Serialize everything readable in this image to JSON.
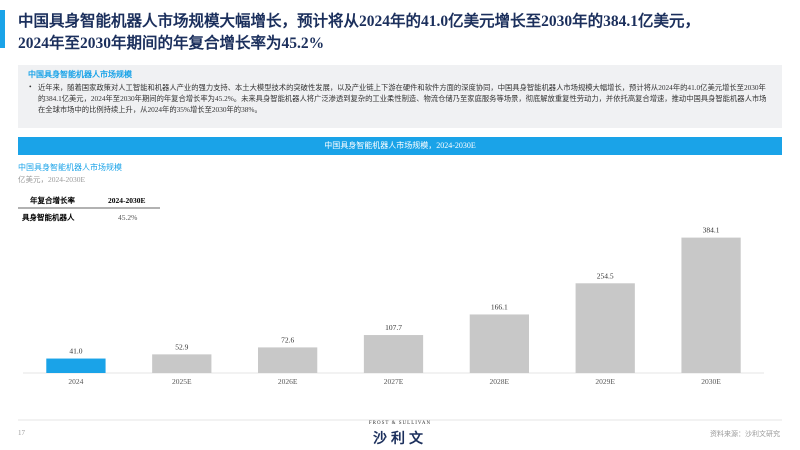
{
  "header": {
    "title_line1": "中国具身智能机器人市场规模大幅增长，预计将从2024年的41.0亿美元增长至2030年的384.1亿美元，",
    "title_line2": "2024年至2030年期间的年复合增长率为45.2%"
  },
  "summary": {
    "heading": "中国具身智能机器人市场规模",
    "bullet": "近年来，随着国家政策对人工智能和机器人产业的强力支持、本土大模型技术的突破性发展，以及产业链上下游在硬件和软件方面的深度协同，中国具身智能机器人市场规模大幅增长，预计将从2024年的41.0亿美元增长至2030年的384.1亿美元，2024年至2030年期间的年复合增长率为45.2%。未来具身智能机器人将广泛渗透到复杂的工业柔性制造、物流仓储乃至家庭服务等场景，彻底解放重复性劳动力，并依托高复合增速，推动中国具身智能机器人市场在全球市场中的比例持续上升，从2024年的35%增长至2030年的38%。"
  },
  "banner": "中国具身智能机器人市场规模，2024-2030E",
  "chart_data": {
    "type": "bar",
    "title": "中国具身智能机器人市场规模",
    "subtitle": "亿美元，2024-2030E",
    "categories": [
      "2024",
      "2025E",
      "2026E",
      "2027E",
      "2028E",
      "2029E",
      "2030E"
    ],
    "values": [
      41.0,
      52.9,
      72.6,
      107.7,
      166.1,
      254.5,
      384.1
    ],
    "value_labels": [
      "41.0",
      "52.9",
      "72.6",
      "107.7",
      "166.1",
      "254.5",
      "384.1"
    ],
    "colors": [
      "#1aa3e8",
      "#c8c8c8",
      "#c8c8c8",
      "#c8c8c8",
      "#c8c8c8",
      "#c8c8c8",
      "#c8c8c8"
    ],
    "ylim": [
      0,
      400
    ]
  },
  "cagr_table": {
    "header": [
      "年复合增长率",
      "2024-2030E"
    ],
    "row": [
      "具身智能机器人",
      "45.2%"
    ]
  },
  "footer": {
    "page": "17",
    "logo_en": "FROST & SULLIVAN",
    "logo_cn": "沙利文",
    "source": "资料来源：沙利文研究"
  }
}
